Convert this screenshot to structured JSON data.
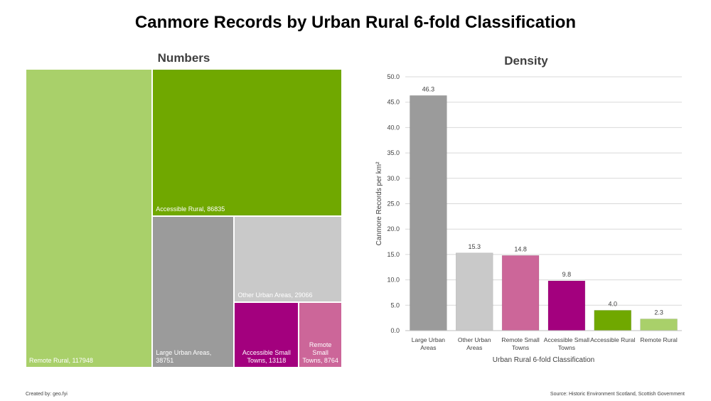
{
  "title": "Canmore Records by Urban Rural 6-fold Classification",
  "footer": {
    "created_by": "Created by: geo.fyi",
    "source": "Source: Historic Environment Scotland, Scottish Government"
  },
  "colors": {
    "remote_rural": "#a9d06a",
    "accessible_rural": "#70a800",
    "large_urban": "#9b9b9b",
    "other_urban": "#c9c9c9",
    "accessible_small_towns": "#a3007e",
    "remote_small_towns": "#cc6699",
    "gridline": "#d9d9d9",
    "axis_text": "#404040"
  },
  "chart_data": [
    {
      "type": "treemap",
      "title": "Numbers",
      "items": [
        {
          "category": "Remote Rural",
          "value": 117948,
          "label": "Remote Rural, 117948",
          "color_key": "remote_rural"
        },
        {
          "category": "Accessible Rural",
          "value": 86835,
          "label": "Accessible Rural, 86835",
          "color_key": "accessible_rural"
        },
        {
          "category": "Large Urban Areas",
          "value": 38751,
          "label": "Large Urban Areas, 38751",
          "color_key": "large_urban"
        },
        {
          "category": "Other Urban Areas",
          "value": 29066,
          "label": "Other Urban Areas, 29066",
          "color_key": "other_urban"
        },
        {
          "category": "Accessible Small Towns",
          "value": 13118,
          "label": "Accessible Small Towns, 13118",
          "color_key": "accessible_small_towns"
        },
        {
          "category": "Remote Small Towns",
          "value": 8764,
          "label": "Remote Small Towns, 8764",
          "color_key": "remote_small_towns"
        }
      ]
    },
    {
      "type": "bar",
      "title": "Density",
      "xlabel": "Urban Rural 6-fold Classification",
      "ylabel": "Canmore Records per km²",
      "ylim": [
        0,
        50
      ],
      "yticks": [
        "0.0",
        "5.0",
        "10.0",
        "15.0",
        "20.0",
        "25.0",
        "30.0",
        "35.0",
        "40.0",
        "45.0",
        "50.0"
      ],
      "grid": true,
      "categories": [
        [
          "Large Urban",
          "Areas"
        ],
        [
          "Other Urban",
          "Areas"
        ],
        [
          "Remote Small",
          "Towns"
        ],
        [
          "Accessible Small",
          "Towns"
        ],
        [
          "Accessible Rural"
        ],
        [
          "Remote Rural"
        ]
      ],
      "values": [
        46.3,
        15.3,
        14.8,
        9.8,
        4.0,
        2.3
      ],
      "data_labels": [
        "46.3",
        "15.3",
        "14.8",
        "9.8",
        "4.0",
        "2.3"
      ],
      "color_keys": [
        "large_urban",
        "other_urban",
        "remote_small_towns",
        "accessible_small_towns",
        "accessible_rural",
        "remote_rural"
      ]
    }
  ]
}
